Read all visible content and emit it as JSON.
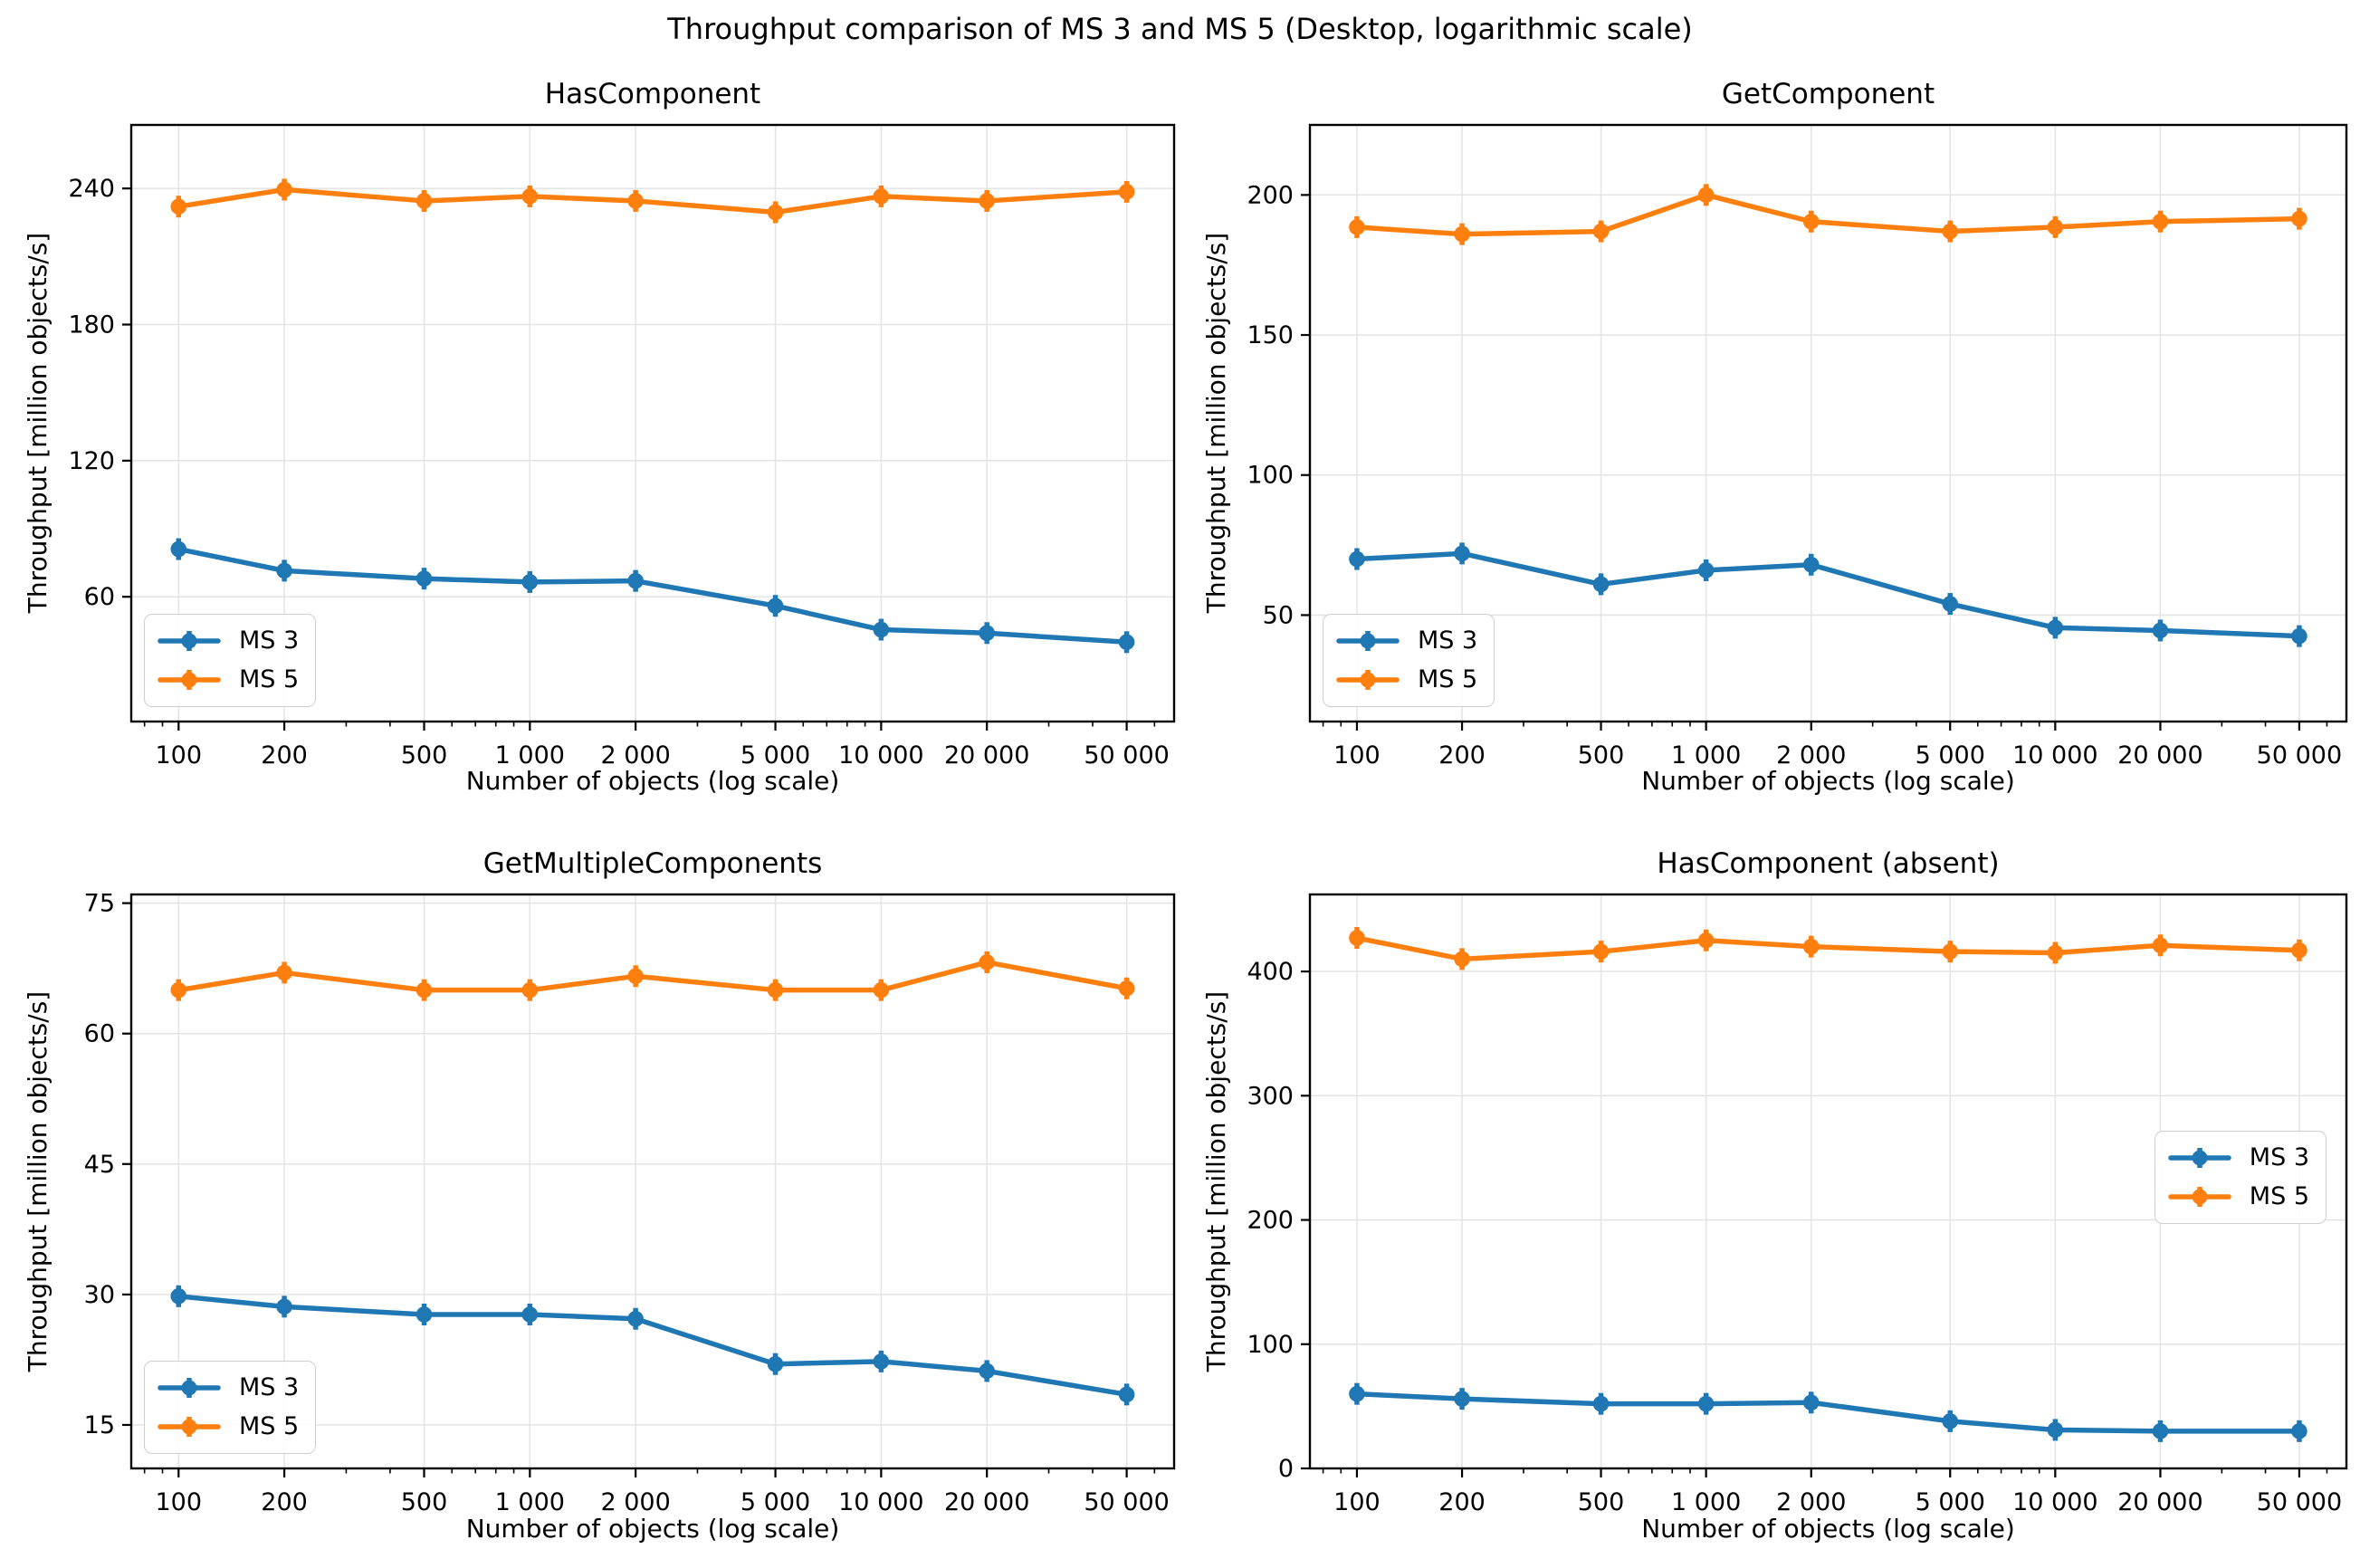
{
  "suptitle": "Throughput comparison of MS 3 and MS 5 (Desktop, logarithmic scale)",
  "axis": {
    "xlabel": "Number of objects (log scale)",
    "ylabel": "Throughput [million objects/s]"
  },
  "legend": {
    "labels": [
      "MS 3",
      "MS 5"
    ]
  },
  "colors": {
    "ms3": "#1f77b4",
    "ms5": "#ff7f0e",
    "grid": "#e5e5e5",
    "frame": "#000000",
    "legend_border": "#cfcfcf"
  },
  "x": {
    "values": [
      100,
      200,
      500,
      1000,
      2000,
      5000,
      10000,
      20000,
      50000
    ],
    "tick_labels": [
      "100",
      "200",
      "500",
      "1 000",
      "2 000",
      "5 000",
      "10 000",
      "20 000",
      "50 000"
    ],
    "minor_ticks": [
      80,
      90,
      300,
      400,
      600,
      700,
      800,
      900,
      3000,
      4000,
      6000,
      7000,
      8000,
      9000,
      30000,
      40000,
      60000
    ],
    "xlim_log10": [
      1.8653,
      4.834
    ],
    "scale": "log"
  },
  "chart_data": [
    {
      "type": "line",
      "title": "HasComponent",
      "xlabel": "Number of objects (log scale)",
      "ylabel": "Throughput [million objects/s]",
      "x": [
        100,
        200,
        500,
        1000,
        2000,
        5000,
        10000,
        20000,
        50000
      ],
      "series": [
        {
          "name": "MS 3",
          "color": "#1f77b4",
          "values": [
            81,
            71.5,
            68,
            66.5,
            67,
            56,
            45.5,
            44,
            40
          ]
        },
        {
          "name": "MS 5",
          "color": "#ff7f0e",
          "values": [
            232,
            239.5,
            234.5,
            236.5,
            234.5,
            229.5,
            236.5,
            234.5,
            238.5
          ]
        }
      ],
      "ylim": [
        5,
        268
      ],
      "yticks": [
        60,
        120,
        180,
        240
      ],
      "grid": true,
      "legend_loc": "lower left"
    },
    {
      "type": "line",
      "title": "GetComponent",
      "xlabel": "Number of objects (log scale)",
      "ylabel": "Throughput [million objects/s]",
      "x": [
        100,
        200,
        500,
        1000,
        2000,
        5000,
        10000,
        20000,
        50000
      ],
      "series": [
        {
          "name": "MS 3",
          "color": "#1f77b4",
          "values": [
            70,
            72,
            61,
            66,
            68,
            54,
            45.5,
            44.5,
            42.5
          ]
        },
        {
          "name": "MS 5",
          "color": "#ff7f0e",
          "values": [
            188.5,
            186,
            187,
            200,
            190.5,
            187,
            188.5,
            190.5,
            191.5
          ]
        }
      ],
      "ylim": [
        12,
        225
      ],
      "yticks": [
        50,
        100,
        150,
        200
      ],
      "grid": true,
      "legend_loc": "lower left"
    },
    {
      "type": "line",
      "title": "GetMultipleComponents",
      "xlabel": "Number of objects (log scale)",
      "ylabel": "Throughput [million objects/s]",
      "x": [
        100,
        200,
        500,
        1000,
        2000,
        5000,
        10000,
        20000,
        50000
      ],
      "series": [
        {
          "name": "MS 3",
          "color": "#1f77b4",
          "values": [
            29.8,
            28.6,
            27.7,
            27.7,
            27.2,
            22,
            22.3,
            21.2,
            18.5
          ]
        },
        {
          "name": "MS 5",
          "color": "#ff7f0e",
          "values": [
            65,
            67,
            65,
            65,
            66.6,
            65,
            65,
            68.2,
            65.2
          ]
        }
      ],
      "ylim": [
        10,
        76
      ],
      "yticks": [
        15,
        30,
        45,
        60,
        75
      ],
      "grid": true,
      "legend_loc": "lower left"
    },
    {
      "type": "line",
      "title": "HasComponent (absent)",
      "xlabel": "Number of objects (log scale)",
      "ylabel": "Throughput [million objects/s]",
      "x": [
        100,
        200,
        500,
        1000,
        2000,
        5000,
        10000,
        20000,
        50000
      ],
      "series": [
        {
          "name": "MS 3",
          "color": "#1f77b4",
          "values": [
            60,
            56,
            52,
            52,
            53,
            38,
            31,
            30,
            30
          ]
        },
        {
          "name": "MS 5",
          "color": "#ff7f0e",
          "values": [
            427,
            410,
            416,
            425,
            420,
            416,
            415,
            421,
            417
          ]
        }
      ],
      "ylim": [
        0,
        462
      ],
      "yticks": [
        0,
        100,
        200,
        300,
        400
      ],
      "grid": true,
      "legend_loc": "center right"
    }
  ]
}
